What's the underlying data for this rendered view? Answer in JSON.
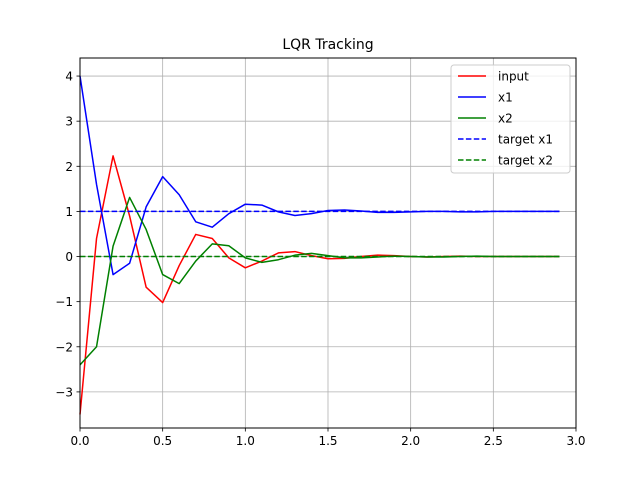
{
  "chart_data": {
    "type": "line",
    "title": "LQR Tracking",
    "xlabel": "",
    "ylabel": "",
    "xlim": [
      0.0,
      3.0
    ],
    "ylim": [
      -3.8,
      4.4
    ],
    "xticks": [
      0.0,
      0.5,
      1.0,
      1.5,
      2.0,
      2.5,
      3.0
    ],
    "xtick_labels": [
      "0.0",
      "0.5",
      "1.0",
      "1.5",
      "2.0",
      "2.5",
      "3.0"
    ],
    "yticks": [
      -3,
      -2,
      -1,
      0,
      1,
      2,
      3,
      4
    ],
    "ytick_labels": [
      "−3",
      "−2",
      "−1",
      "0",
      "1",
      "2",
      "3",
      "4"
    ],
    "grid": true,
    "legend_position": "top-right",
    "x": [
      0.0,
      0.1,
      0.2,
      0.3,
      0.4,
      0.5,
      0.6,
      0.7,
      0.8,
      0.9,
      1.0,
      1.1,
      1.2,
      1.3,
      1.4,
      1.5,
      1.6,
      1.7,
      1.8,
      1.9,
      2.0,
      2.1,
      2.2,
      2.3,
      2.4,
      2.5,
      2.6,
      2.7,
      2.8,
      2.9
    ],
    "series": [
      {
        "name": "input",
        "color": "#ff0000",
        "dash": "solid",
        "values": [
          -3.5,
          0.4,
          2.23,
          0.9,
          -0.68,
          -1.02,
          -0.2,
          0.49,
          0.4,
          -0.03,
          -0.25,
          -0.1,
          0.08,
          0.11,
          0.02,
          -0.05,
          -0.04,
          0.0,
          0.03,
          0.02,
          0.0,
          -0.01,
          0.0,
          0.01,
          0.0,
          0.0,
          0.0,
          0.0,
          0.0,
          0.0
        ]
      },
      {
        "name": "x1",
        "color": "#0000ff",
        "dash": "solid",
        "values": [
          4.0,
          1.6,
          -0.4,
          -0.15,
          1.1,
          1.77,
          1.37,
          0.77,
          0.65,
          0.95,
          1.16,
          1.14,
          0.99,
          0.91,
          0.95,
          1.02,
          1.03,
          1.01,
          0.98,
          0.98,
          0.99,
          1.0,
          1.0,
          0.99,
          0.99,
          1.0,
          1.0,
          1.0,
          1.0,
          1.0
        ]
      },
      {
        "name": "x2",
        "color": "#008000",
        "dash": "solid",
        "values": [
          -2.4,
          -2.0,
          0.23,
          1.31,
          0.6,
          -0.4,
          -0.6,
          -0.1,
          0.28,
          0.24,
          -0.03,
          -0.13,
          -0.07,
          0.03,
          0.07,
          0.02,
          -0.03,
          -0.03,
          -0.01,
          0.01,
          0.0,
          -0.01,
          -0.01,
          0.0,
          0.01,
          0.0,
          0.0,
          0.0,
          0.0,
          0.0
        ]
      },
      {
        "name": "target x1",
        "color": "#0000ff",
        "dash": "dashed",
        "values": [
          1,
          1,
          1,
          1,
          1,
          1,
          1,
          1,
          1,
          1,
          1,
          1,
          1,
          1,
          1,
          1,
          1,
          1,
          1,
          1,
          1,
          1,
          1,
          1,
          1,
          1,
          1,
          1,
          1,
          1
        ]
      },
      {
        "name": "target x2",
        "color": "#008000",
        "dash": "dashed",
        "values": [
          0,
          0,
          0,
          0,
          0,
          0,
          0,
          0,
          0,
          0,
          0,
          0,
          0,
          0,
          0,
          0,
          0,
          0,
          0,
          0,
          0,
          0,
          0,
          0,
          0,
          0,
          0,
          0,
          0,
          0
        ]
      }
    ]
  }
}
